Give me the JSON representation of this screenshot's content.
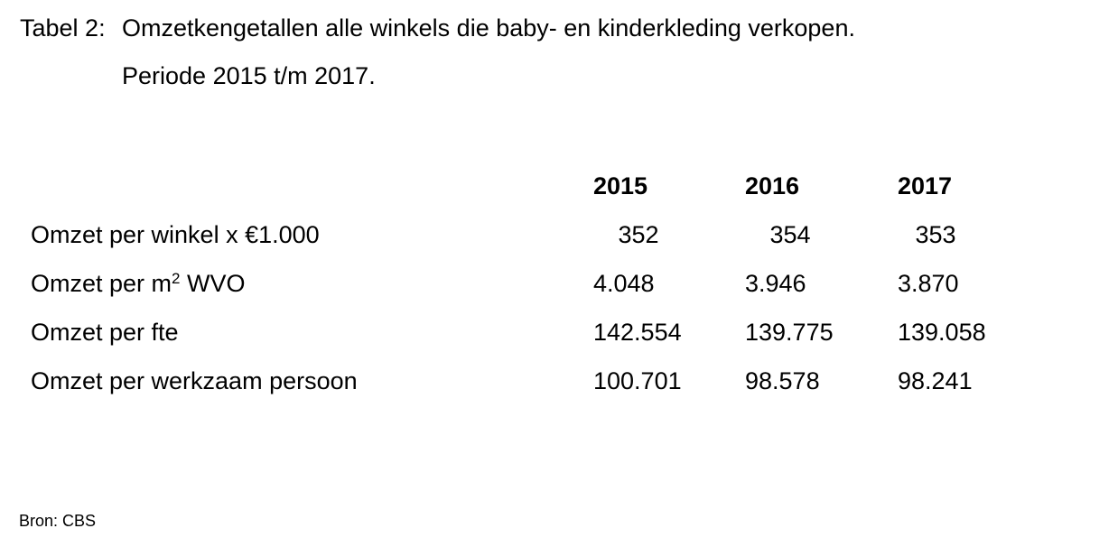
{
  "title": {
    "label": "Tabel 2:",
    "text": "Omzetkengetallen alle winkels die baby- en kinderkleding verkopen.",
    "period": "Periode 2015 t/m 2017."
  },
  "table": {
    "years": [
      "2015",
      "2016",
      "2017"
    ],
    "rows": [
      {
        "label": "Omzet per winkel x €1.000",
        "values": [
          "352",
          "354",
          "353"
        ]
      },
      {
        "label_prefix": "Omzet per m",
        "label_sup": "2",
        "label_suffix": " WVO",
        "values": [
          "4.048",
          "3.946",
          "3.870"
        ]
      },
      {
        "label": "Omzet per fte",
        "values": [
          "142.554",
          "139.775",
          "139.058"
        ]
      },
      {
        "label": "Omzet per werkzaam persoon",
        "values": [
          "100.701",
          "98.578",
          "98.241"
        ]
      }
    ]
  },
  "source": "Bron: CBS"
}
